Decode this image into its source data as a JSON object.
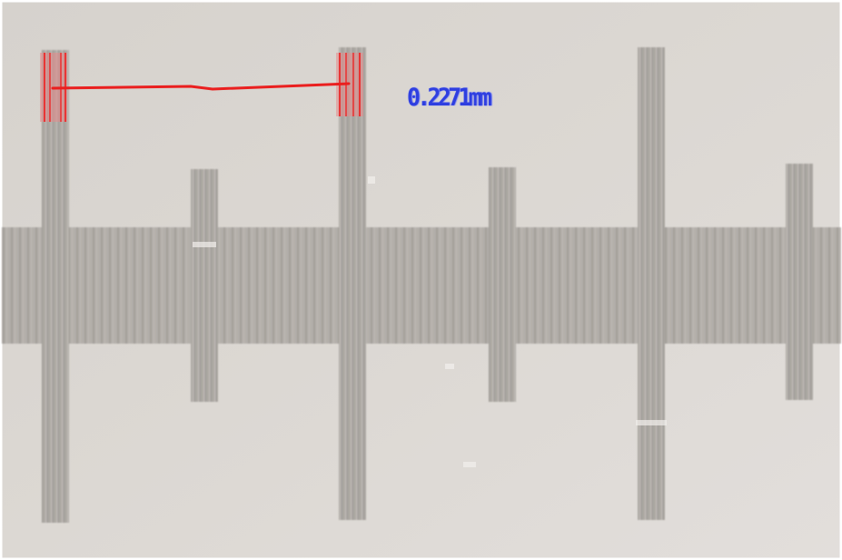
{
  "measurement": {
    "readout": "0.2271mm"
  },
  "colors": {
    "background": "#dcd7d2",
    "ruler_band": "#b1ada8",
    "tick": "#a9a5a0",
    "tick_line": "#c3bfba",
    "measure_line": "#ea1f1f",
    "measure_highlight": "#e66a6a",
    "readout_text": "#2f3fe0"
  },
  "ruler": {
    "type": "stage-micrometer-scale"
  }
}
